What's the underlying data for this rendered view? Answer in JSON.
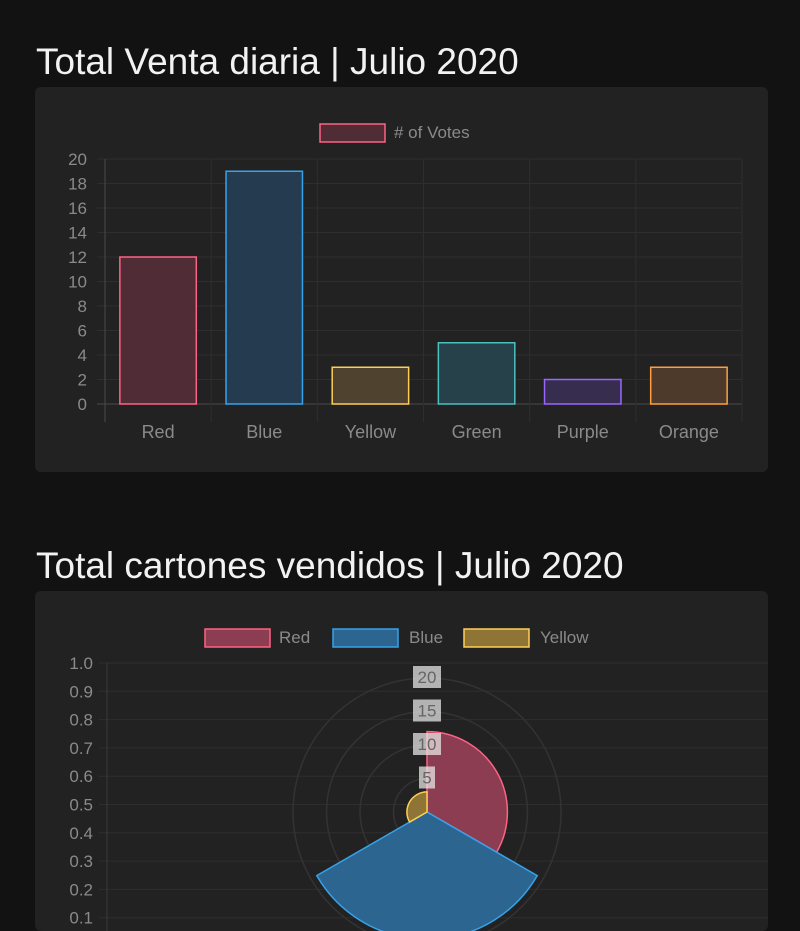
{
  "sections": [
    {
      "title": "Total Venta diaria | Julio 2020",
      "chart_data": {
        "type": "bar",
        "legend_position": "top",
        "categories": [
          "Red",
          "Blue",
          "Yellow",
          "Green",
          "Purple",
          "Orange"
        ],
        "series": [
          {
            "name": "# of Votes",
            "values": [
              12,
              19,
              3,
              5,
              2,
              3
            ]
          }
        ],
        "ylim": [
          0,
          20
        ],
        "yticks": [
          0,
          2,
          4,
          6,
          8,
          10,
          12,
          14,
          16,
          18,
          20
        ],
        "grid": true,
        "colors": {
          "fill": [
            "#4f2c36",
            "#253c50",
            "#4f4330",
            "#27414a",
            "#362d4f",
            "#4e3a2b"
          ],
          "stroke": [
            "#ff6384",
            "#36a2eb",
            "#ffce56",
            "#4bc0c0",
            "#9966ff",
            "#ff9f40"
          ]
        }
      }
    },
    {
      "title": "Total cartones vendidos | Julio 2020",
      "chart_data": {
        "type": "polarArea",
        "legend_position": "top",
        "categories": [
          "Red",
          "Blue",
          "Yellow"
        ],
        "values": [
          12,
          19,
          3
        ],
        "radial_ticks": [
          5,
          10,
          15,
          20
        ],
        "y_axis_ticks": [
          "1.0",
          "0.9",
          "0.8",
          "0.7",
          "0.6",
          "0.5",
          "0.4",
          "0.3",
          "0.2",
          "0.1"
        ],
        "grid": true,
        "colors": {
          "fill": [
            "#8c3d52",
            "#2c6590",
            "#8f7535"
          ],
          "stroke": [
            "#ff6384",
            "#36a2eb",
            "#ffce56"
          ]
        }
      }
    }
  ]
}
